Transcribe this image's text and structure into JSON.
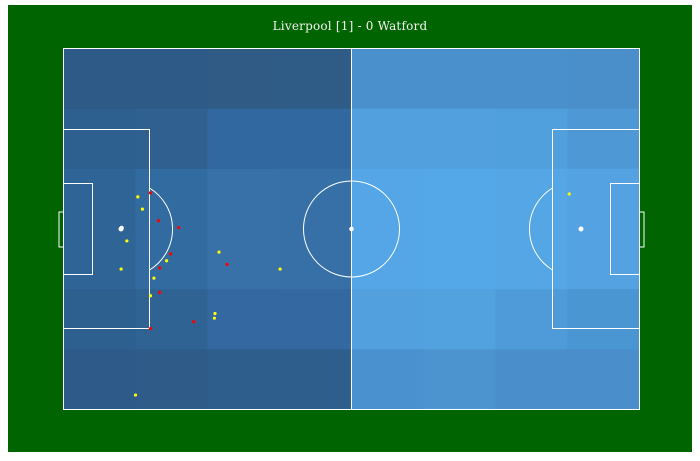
{
  "title": "Liverpool [1] - 0 Watford",
  "colors": {
    "background": "#006400",
    "lines": "#ffffff",
    "zones": [
      [
        "#2d5a86",
        "#2d5a86",
        "#2f5b84",
        "#2e5c86",
        "#4a90cc",
        "#4a90cc",
        "#4a90cc",
        "#4a8fca"
      ],
      [
        "#2d5f8f",
        "#2f6090",
        "#3168a0",
        "#3168a0",
        "#52a0de",
        "#52a0de",
        "#50a0de",
        "#4e98d6"
      ],
      [
        "#2f6497",
        "#326b9f",
        "#3870a8",
        "#3670a6",
        "#55a6e6",
        "#55a8e8",
        "#55a6e5",
        "#54a2e2"
      ],
      [
        "#2f6497",
        "#326b9f",
        "#3870a8",
        "#3670a6",
        "#55a6e6",
        "#55a8e8",
        "#55a6e5",
        "#54a2e2"
      ],
      [
        "#2d5f8f",
        "#2f6393",
        "#3468a0",
        "#3468a0",
        "#52a0de",
        "#52a2e0",
        "#4f9bd9",
        "#4a96d2"
      ],
      [
        "#2d5a88",
        "#2e5b88",
        "#2e5e8c",
        "#2e5e8c",
        "#4a92cf",
        "#4c94d0",
        "#4a8ecb",
        "#4a8ecb"
      ]
    ]
  },
  "shots": [
    {
      "team": "home",
      "result": "on-target",
      "x": 12.9,
      "y": 41.1,
      "color": "#ffff00"
    },
    {
      "team": "home",
      "result": "on-target",
      "x": 13.7,
      "y": 44.5,
      "color": "#ffff00"
    },
    {
      "team": "home",
      "result": "on-target",
      "x": 11.0,
      "y": 53.3,
      "color": "#ffff00"
    },
    {
      "team": "home",
      "result": "on-target",
      "x": 10.0,
      "y": 61.1,
      "color": "#ffff00"
    },
    {
      "team": "home",
      "result": "on-target",
      "x": 15.7,
      "y": 63.6,
      "color": "#ffff00"
    },
    {
      "team": "home",
      "result": "on-target",
      "x": 17.9,
      "y": 58.8,
      "color": "#ffff00"
    },
    {
      "team": "home",
      "result": "on-target",
      "x": 15.1,
      "y": 68.5,
      "color": "#ffff00"
    },
    {
      "team": "home",
      "result": "on-target",
      "x": 26.3,
      "y": 73.4,
      "color": "#ffff00"
    },
    {
      "team": "home",
      "result": "on-target",
      "x": 26.2,
      "y": 74.7,
      "color": "#ffff00"
    },
    {
      "team": "home",
      "result": "on-target",
      "x": 27.0,
      "y": 56.4,
      "color": "#ffff00"
    },
    {
      "team": "home",
      "result": "on-target",
      "x": 37.6,
      "y": 61.1,
      "color": "#ffff00"
    },
    {
      "team": "home",
      "result": "on-target",
      "x": 12.5,
      "y": 96.0,
      "color": "#ffff00"
    },
    {
      "team": "home",
      "result": "goal",
      "x": 10.1,
      "y": 49.7,
      "color": "#ffffff"
    },
    {
      "team": "home",
      "result": "off-target",
      "x": 15.1,
      "y": 40.0,
      "color": "#ff0000"
    },
    {
      "team": "home",
      "result": "off-target",
      "x": 16.5,
      "y": 47.7,
      "color": "#ff0000"
    },
    {
      "team": "home",
      "result": "off-target",
      "x": 20.0,
      "y": 49.6,
      "color": "#ff0000"
    },
    {
      "team": "home",
      "result": "off-target",
      "x": 18.6,
      "y": 56.9,
      "color": "#ff0000"
    },
    {
      "team": "home",
      "result": "off-target",
      "x": 16.7,
      "y": 60.8,
      "color": "#ff0000"
    },
    {
      "team": "home",
      "result": "off-target",
      "x": 28.4,
      "y": 59.8,
      "color": "#ff0000"
    },
    {
      "team": "home",
      "result": "off-target",
      "x": 16.7,
      "y": 67.6,
      "color": "#ff0000"
    },
    {
      "team": "home",
      "result": "off-target",
      "x": 22.6,
      "y": 75.7,
      "color": "#ff0000"
    },
    {
      "team": "home",
      "result": "off-target",
      "x": 15.1,
      "y": 77.6,
      "color": "#ff0000"
    },
    {
      "team": "away",
      "result": "on-target",
      "x": 87.8,
      "y": 40.3,
      "color": "#ffff00"
    }
  ]
}
